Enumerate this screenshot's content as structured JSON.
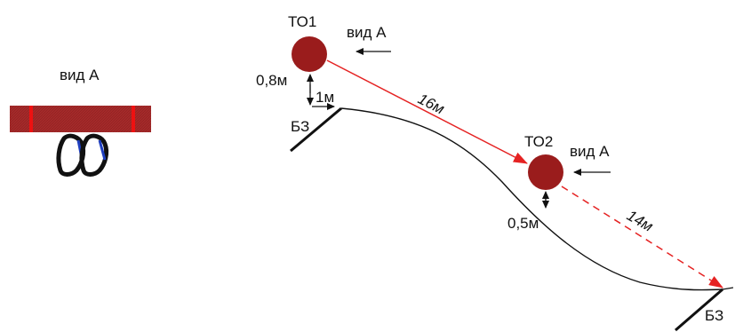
{
  "colors": {
    "tree_fill": "#9a1c1c",
    "sling_fill": "#a52a2a",
    "sling_stripe": "#ee1111",
    "red_line": "#e52222",
    "black_line": "#111111",
    "carabiner_blue": "#1f3fbf"
  },
  "detail_view": {
    "title": "вид А"
  },
  "anchors": {
    "to1": {
      "label": "ТО1",
      "view_label": "вид А",
      "height_label": "0,8м",
      "offset_label": "1м"
    },
    "to2": {
      "label": "ТО2",
      "view_label": "вид А",
      "height_label": "0,5м"
    }
  },
  "spans": {
    "span1": {
      "length_label": "16м"
    },
    "span2": {
      "length_label": "14м"
    }
  },
  "safety_zones": {
    "start": {
      "label": "БЗ"
    },
    "end": {
      "label": "БЗ"
    }
  },
  "icons": [
    "arrow-left-icon",
    "arrow-down-icon",
    "carabiner-icon",
    "tree-section-icon"
  ]
}
